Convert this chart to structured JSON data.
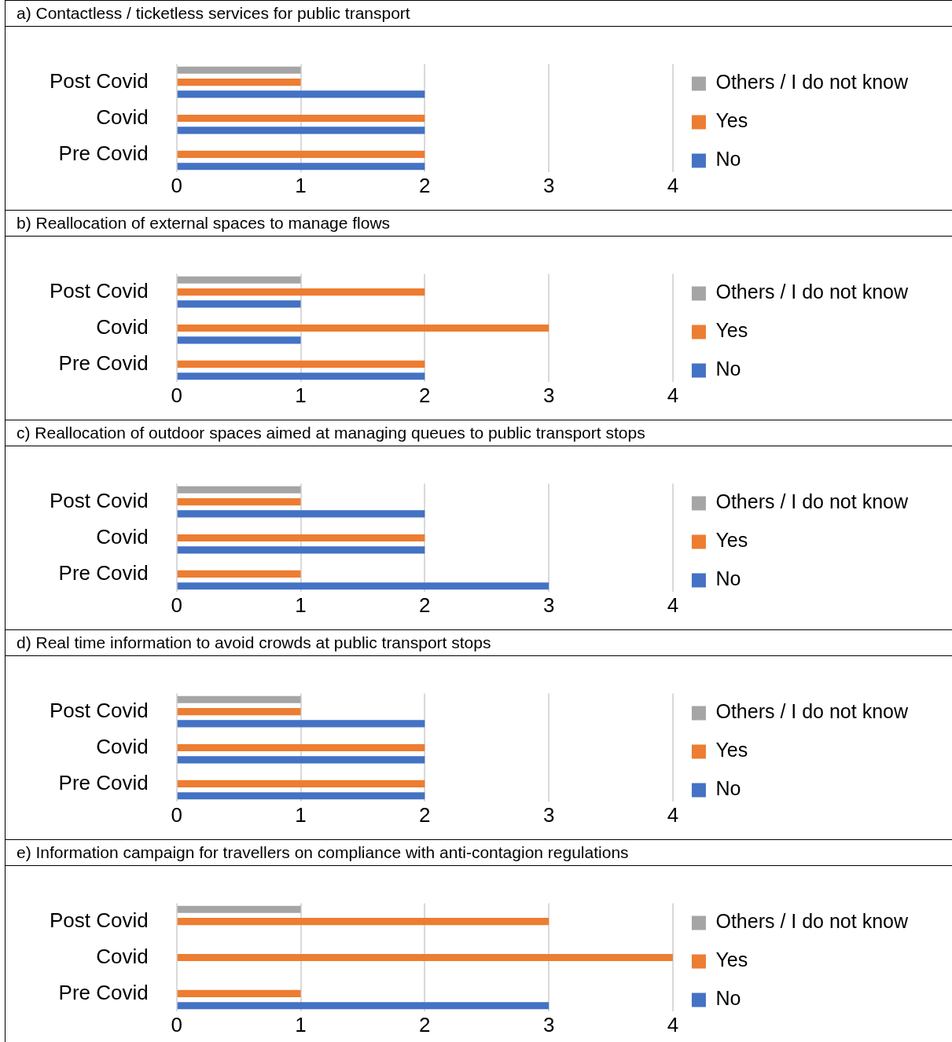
{
  "chart_data": [
    {
      "type": "bar",
      "orientation": "horizontal",
      "title": "a) Contactless / ticketless services for public transport",
      "categories": [
        "Post Covid",
        "Covid",
        "Pre Covid"
      ],
      "series": [
        {
          "name": "Others / I do not know",
          "color": "#a5a5a5",
          "values": [
            1,
            0,
            0
          ]
        },
        {
          "name": "Yes",
          "color": "#ed7d31",
          "values": [
            1,
            2,
            2
          ]
        },
        {
          "name": "No",
          "color": "#4472c4",
          "values": [
            2,
            2,
            2
          ]
        }
      ],
      "xlim": [
        0,
        4
      ],
      "xticks": [
        0,
        1,
        2,
        3,
        4
      ],
      "grid": "x",
      "legend": "right"
    },
    {
      "type": "bar",
      "orientation": "horizontal",
      "title": "b) Reallocation of external spaces to manage flows",
      "categories": [
        "Post Covid",
        "Covid",
        "Pre Covid"
      ],
      "series": [
        {
          "name": "Others / I do not know",
          "color": "#a5a5a5",
          "values": [
            1,
            0,
            0
          ]
        },
        {
          "name": "Yes",
          "color": "#ed7d31",
          "values": [
            2,
            3,
            2
          ]
        },
        {
          "name": "No",
          "color": "#4472c4",
          "values": [
            1,
            1,
            2
          ]
        }
      ],
      "xlim": [
        0,
        4
      ],
      "xticks": [
        0,
        1,
        2,
        3,
        4
      ],
      "grid": "x",
      "legend": "right"
    },
    {
      "type": "bar",
      "orientation": "horizontal",
      "title": "c) Reallocation of outdoor spaces aimed at managing queues to public transport stops",
      "categories": [
        "Post Covid",
        "Covid",
        "Pre Covid"
      ],
      "series": [
        {
          "name": "Others / I do not know",
          "color": "#a5a5a5",
          "values": [
            1,
            0,
            0
          ]
        },
        {
          "name": "Yes",
          "color": "#ed7d31",
          "values": [
            1,
            2,
            1
          ]
        },
        {
          "name": "No",
          "color": "#4472c4",
          "values": [
            2,
            2,
            3
          ]
        }
      ],
      "xlim": [
        0,
        4
      ],
      "xticks": [
        0,
        1,
        2,
        3,
        4
      ],
      "grid": "x",
      "legend": "right"
    },
    {
      "type": "bar",
      "orientation": "horizontal",
      "title": "d) Real time information to avoid crowds at public transport stops",
      "categories": [
        "Post Covid",
        "Covid",
        "Pre Covid"
      ],
      "series": [
        {
          "name": "Others / I do not know",
          "color": "#a5a5a5",
          "values": [
            1,
            0,
            0
          ]
        },
        {
          "name": "Yes",
          "color": "#ed7d31",
          "values": [
            1,
            2,
            2
          ]
        },
        {
          "name": "No",
          "color": "#4472c4",
          "values": [
            2,
            2,
            2
          ]
        }
      ],
      "xlim": [
        0,
        4
      ],
      "xticks": [
        0,
        1,
        2,
        3,
        4
      ],
      "grid": "x",
      "legend": "right"
    },
    {
      "type": "bar",
      "orientation": "horizontal",
      "title": "e) Information campaign for travellers on compliance with anti-contagion regulations",
      "categories": [
        "Post Covid",
        "Covid",
        "Pre Covid"
      ],
      "series": [
        {
          "name": "Others / I do not know",
          "color": "#a5a5a5",
          "values": [
            1,
            0,
            0
          ]
        },
        {
          "name": "Yes",
          "color": "#ed7d31",
          "values": [
            3,
            4,
            1
          ]
        },
        {
          "name": "No",
          "color": "#4472c4",
          "values": [
            0,
            0,
            3
          ]
        }
      ],
      "xlim": [
        0,
        4
      ],
      "xticks": [
        0,
        1,
        2,
        3,
        4
      ],
      "grid": "x",
      "legend": "right"
    }
  ]
}
